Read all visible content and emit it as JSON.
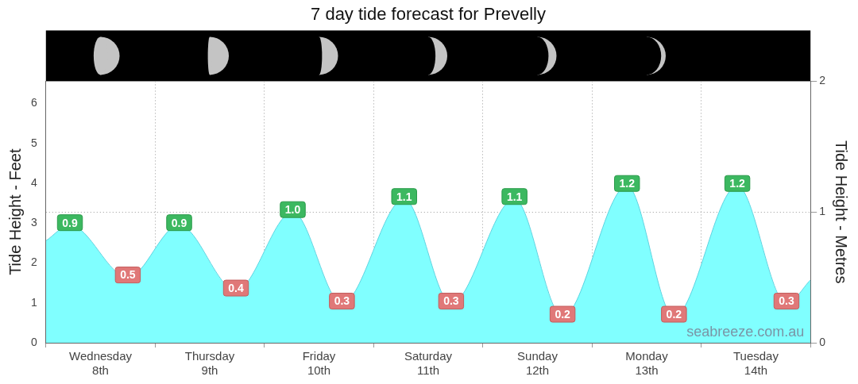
{
  "chart_data": {
    "type": "area",
    "title": "7 day tide forecast for Prevelly",
    "ylabel": "Tide Height - Feet",
    "y2label": "Tide Height - Metres",
    "x": [
      0,
      0.22,
      0.75,
      1.22,
      1.74,
      2.26,
      2.71,
      3.28,
      3.71,
      4.29,
      4.73,
      5.32,
      5.75,
      6.33,
      6.78,
      7
    ],
    "xlim": [
      0,
      7
    ],
    "xticks": [
      {
        "value": 0.5,
        "label": "Wednesday 8th"
      },
      {
        "value": 1.5,
        "label": "Thursday 9th"
      },
      {
        "value": 2.5,
        "label": "Friday 10th"
      },
      {
        "value": 3.5,
        "label": "Saturday 11th"
      },
      {
        "value": 4.5,
        "label": "Sunday 12th"
      },
      {
        "value": 5.5,
        "label": "Monday 13th"
      },
      {
        "value": 6.5,
        "label": "Tuesday 14th"
      }
    ],
    "ylim": [
      0,
      6.5617
    ],
    "yticks": [
      0,
      1,
      2,
      3,
      4,
      5,
      6
    ],
    "y2lim": [
      0,
      2
    ],
    "y2ticks": [
      0,
      1,
      2
    ],
    "series": [
      {
        "values": [
          0.78,
          0.9,
          0.5,
          0.9,
          0.4,
          1.0,
          0.3,
          1.1,
          0.3,
          1.1,
          0.2,
          1.2,
          0.2,
          1.2,
          0.3,
          0.48
        ],
        "value_labels": [
          null,
          "0.9",
          "0.5",
          "0.9",
          "0.4",
          "1.0",
          "0.3",
          "1.1",
          "0.3",
          "1.1",
          "0.2",
          "1.2",
          "0.2",
          "1.2",
          "0.3",
          null
        ],
        "color": "#80ffff",
        "axis": "y2"
      }
    ],
    "moon_illumination": [
      0.68,
      0.55,
      0.42,
      0.31,
      0.21,
      0.12,
      null
    ],
    "annotations": [
      "seabreeze.com.au"
    ],
    "grid": true,
    "data_labels": true
  }
}
